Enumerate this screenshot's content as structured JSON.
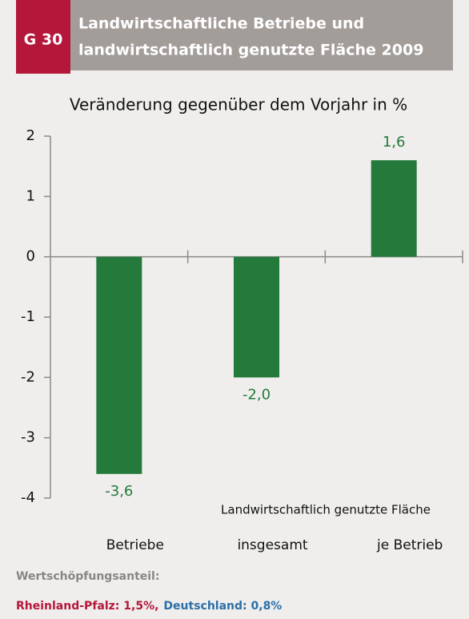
{
  "chart_data": {
    "type": "bar",
    "badge": "G 30",
    "title": [
      "Landwirtschaftliche Betriebe und",
      "landwirtschaftlich genutzte Fläche 2009"
    ],
    "subtitle": "Veränderung gegenüber dem Vorjahr in %",
    "categories": [
      "Betriebe",
      "insgesamt",
      "je Betrieb"
    ],
    "group_label": "Landwirtschaftlich genutzte Fläche",
    "values": [
      -3.6,
      -2.0,
      1.6
    ],
    "value_labels": [
      "-3,6",
      "-2,0",
      "1,6"
    ],
    "color": "#237a3b",
    "ylim": [
      -4,
      2
    ],
    "yticks": [
      -4,
      -3,
      -2,
      -1,
      0,
      1,
      2
    ],
    "footer": {
      "label": "Wertschöpfungsanteil:",
      "items": [
        {
          "text": "Rheinland-Pfalz: 1,5%,",
          "color": "#b5173a"
        },
        {
          "text": "Deutschland: 0,8%",
          "color": "#2b6ea8"
        }
      ]
    }
  }
}
